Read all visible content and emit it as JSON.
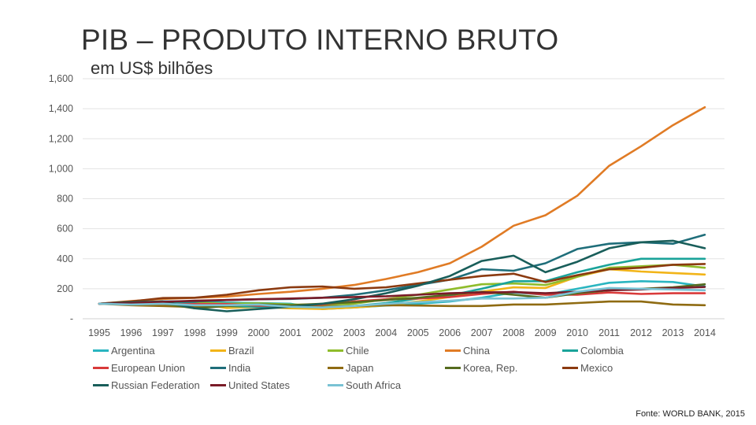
{
  "title": "PIB – PRODUTO INTERNO BRUTO",
  "subtitle": "em US$ bilhões",
  "source": "Fonte: WORLD BANK, 2015",
  "chart_data": {
    "type": "line",
    "ylim": [
      0,
      1600
    ],
    "y_ticks": [
      {
        "value": 1600,
        "label": "1,600"
      },
      {
        "value": 1400,
        "label": "1,400"
      },
      {
        "value": 1200,
        "label": "1,200"
      },
      {
        "value": 1000,
        "label": "1,000"
      },
      {
        "value": 800,
        "label": "800"
      },
      {
        "value": 600,
        "label": "600"
      },
      {
        "value": 400,
        "label": "400"
      },
      {
        "value": 200,
        "label": "200"
      },
      {
        "value": 0,
        "label": "-"
      }
    ],
    "categories": [
      "1995",
      "1996",
      "1997",
      "1998",
      "1999",
      "2000",
      "2001",
      "2002",
      "2003",
      "2004",
      "2005",
      "2006",
      "2007",
      "2008",
      "2009",
      "2010",
      "2011",
      "2012",
      "2013",
      "2014"
    ],
    "grid": true,
    "legend_position": "bottom",
    "series": [
      {
        "name": "Argentina",
        "color": "#2ab5c0",
        "values": [
          100,
          106,
          115,
          112,
          108,
          105,
          100,
          65,
          75,
          88,
          100,
          115,
          140,
          175,
          160,
          200,
          240,
          250,
          245,
          215
        ]
      },
      {
        "name": "Brazil",
        "color": "#f2b418",
        "values": [
          100,
          108,
          110,
          106,
          72,
          80,
          70,
          65,
          75,
          90,
          115,
          145,
          180,
          210,
          205,
          280,
          330,
          315,
          305,
          295
        ]
      },
      {
        "name": "Chile",
        "color": "#8fbc2b",
        "values": [
          100,
          105,
          113,
          108,
          100,
          103,
          95,
          93,
          100,
          130,
          160,
          195,
          230,
          235,
          225,
          280,
          340,
          350,
          360,
          340
        ]
      },
      {
        "name": "China",
        "color": "#e07b25",
        "values": [
          100,
          118,
          132,
          140,
          148,
          165,
          180,
          200,
          225,
          265,
          310,
          370,
          480,
          620,
          690,
          820,
          1020,
          1150,
          1290,
          1410
        ]
      },
      {
        "name": "Colombia",
        "color": "#1aa39a",
        "values": [
          100,
          105,
          110,
          100,
          85,
          80,
          80,
          80,
          85,
          105,
          135,
          155,
          200,
          250,
          250,
          310,
          360,
          400,
          400,
          400
        ]
      },
      {
        "name": "European Union",
        "color": "#d93a3a",
        "values": [
          100,
          102,
          95,
          98,
          98,
          87,
          88,
          95,
          115,
          130,
          135,
          145,
          165,
          180,
          160,
          160,
          175,
          165,
          170,
          170
        ]
      },
      {
        "name": "India",
        "color": "#1f6e7a",
        "values": [
          100,
          105,
          115,
          115,
          125,
          130,
          132,
          140,
          160,
          190,
          225,
          260,
          330,
          320,
          370,
          465,
          500,
          510,
          500,
          560
        ]
      },
      {
        "name": "Japan",
        "color": "#8f6b12",
        "values": [
          100,
          90,
          85,
          78,
          86,
          95,
          82,
          80,
          85,
          90,
          88,
          85,
          85,
          95,
          95,
          105,
          115,
          115,
          95,
          90
        ]
      },
      {
        "name": "Korea, Rep.",
        "color": "#556b1e",
        "values": [
          100,
          108,
          100,
          70,
          85,
          96,
          90,
          100,
          110,
          125,
          140,
          160,
          180,
          160,
          140,
          170,
          190,
          200,
          210,
          230
        ]
      },
      {
        "name": "Mexico",
        "color": "#8b3a10",
        "values": [
          100,
          115,
          138,
          140,
          160,
          190,
          210,
          215,
          200,
          210,
          235,
          260,
          285,
          300,
          245,
          290,
          330,
          340,
          360,
          365
        ]
      },
      {
        "name": "Russian Federation",
        "color": "#195e5a",
        "values": [
          100,
          110,
          115,
          70,
          50,
          65,
          80,
          100,
          130,
          170,
          220,
          285,
          385,
          420,
          310,
          380,
          470,
          510,
          520,
          470
        ]
      },
      {
        "name": "United States",
        "color": "#7a1c28",
        "values": [
          100,
          105,
          112,
          120,
          125,
          130,
          135,
          140,
          145,
          150,
          160,
          170,
          175,
          178,
          170,
          180,
          190,
          195,
          205,
          212
        ]
      },
      {
        "name": "South Africa",
        "color": "#79c2d4",
        "values": [
          100,
          95,
          100,
          90,
          90,
          95,
          80,
          75,
          85,
          100,
          110,
          120,
          135,
          135,
          140,
          180,
          205,
          200,
          195,
          190
        ]
      }
    ]
  }
}
